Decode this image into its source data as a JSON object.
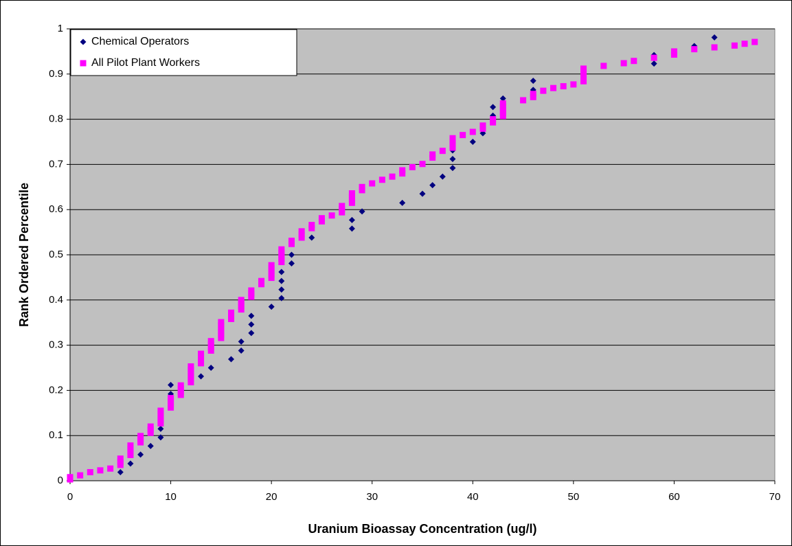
{
  "chart_data": {
    "type": "scatter",
    "xlabel": "Uranium Bioassay Concentration (ug/l)",
    "ylabel": "Rank Ordered Percentile",
    "xlim": [
      0,
      70
    ],
    "xticks": [
      0,
      10,
      20,
      30,
      40,
      50,
      60,
      70
    ],
    "ylim": [
      0,
      1
    ],
    "yticks": [
      0,
      0.1,
      0.2,
      0.3,
      0.4,
      0.5,
      0.6,
      0.7,
      0.8,
      0.9,
      1
    ],
    "grid": true,
    "legend": "top-left",
    "series": [
      {
        "name": "Chemical Operators",
        "color": "#000080",
        "marker": "diamond",
        "x": [
          5,
          6,
          7,
          8,
          9,
          9,
          10,
          10,
          13,
          14,
          16,
          17,
          17,
          18,
          18,
          18,
          20,
          21,
          21,
          21,
          21,
          22,
          22,
          24,
          28,
          28,
          29,
          33,
          35,
          36,
          37,
          38,
          38,
          38,
          40,
          41,
          42,
          42,
          43,
          46,
          46,
          58,
          58,
          62,
          64
        ],
        "values": [
          0.019,
          0.038,
          0.058,
          0.077,
          0.096,
          0.115,
          0.192,
          0.212,
          0.231,
          0.25,
          0.269,
          0.288,
          0.308,
          0.327,
          0.346,
          0.365,
          0.385,
          0.404,
          0.423,
          0.442,
          0.462,
          0.481,
          0.5,
          0.538,
          0.558,
          0.577,
          0.596,
          0.615,
          0.635,
          0.654,
          0.673,
          0.692,
          0.712,
          0.731,
          0.75,
          0.769,
          0.808,
          0.827,
          0.846,
          0.865,
          0.885,
          0.923,
          0.942,
          0.962,
          0.981
        ]
      },
      {
        "name": "All Pilot Plant Workers",
        "color": "#ff00ff",
        "marker": "square",
        "x": [
          0,
          0,
          1,
          2,
          3,
          4,
          5,
          5,
          5,
          6,
          6,
          6,
          6,
          7,
          7,
          7,
          8,
          8,
          8,
          9,
          9,
          9,
          9,
          9,
          10,
          10,
          10,
          10,
          11,
          11,
          11,
          11,
          12,
          12,
          12,
          12,
          12,
          12,
          13,
          13,
          13,
          13,
          14,
          14,
          14,
          14,
          15,
          15,
          15,
          15,
          15,
          15,
          16,
          16,
          16,
          17,
          17,
          17,
          17,
          18,
          18,
          18,
          19,
          19,
          20,
          20,
          20,
          20,
          20,
          21,
          21,
          21,
          21,
          21,
          22,
          22,
          23,
          23,
          23,
          24,
          24,
          25,
          25,
          26,
          27,
          27,
          27,
          28,
          28,
          28,
          28,
          29,
          29,
          30,
          31,
          32,
          33,
          33,
          34,
          35,
          36,
          36,
          37,
          38,
          38,
          38,
          38,
          39,
          40,
          41,
          41,
          42,
          42,
          43,
          43,
          43,
          43,
          43,
          45,
          46,
          46,
          47,
          48,
          49,
          50,
          51,
          51,
          51,
          51,
          51,
          53,
          55,
          56,
          58,
          60,
          60,
          62,
          64,
          66,
          67,
          68
        ],
        "values": [
          0.003,
          0.008,
          0.012,
          0.019,
          0.023,
          0.027,
          0.035,
          0.042,
          0.049,
          0.057,
          0.064,
          0.071,
          0.078,
          0.085,
          0.092,
          0.099,
          0.106,
          0.113,
          0.12,
          0.127,
          0.134,
          0.141,
          0.148,
          0.155,
          0.162,
          0.169,
          0.176,
          0.183,
          0.19,
          0.197,
          0.204,
          0.211,
          0.218,
          0.225,
          0.232,
          0.239,
          0.246,
          0.253,
          0.26,
          0.267,
          0.274,
          0.281,
          0.288,
          0.295,
          0.302,
          0.309,
          0.316,
          0.323,
          0.33,
          0.337,
          0.344,
          0.351,
          0.358,
          0.365,
          0.372,
          0.379,
          0.386,
          0.393,
          0.4,
          0.407,
          0.414,
          0.421,
          0.435,
          0.442,
          0.449,
          0.456,
          0.463,
          0.47,
          0.477,
          0.484,
          0.491,
          0.498,
          0.505,
          0.512,
          0.524,
          0.531,
          0.538,
          0.545,
          0.552,
          0.559,
          0.566,
          0.574,
          0.581,
          0.587,
          0.594,
          0.601,
          0.608,
          0.615,
          0.622,
          0.629,
          0.636,
          0.643,
          0.65,
          0.658,
          0.666,
          0.673,
          0.68,
          0.687,
          0.694,
          0.701,
          0.715,
          0.722,
          0.73,
          0.737,
          0.744,
          0.751,
          0.758,
          0.765,
          0.772,
          0.779,
          0.786,
          0.793,
          0.8,
          0.807,
          0.814,
          0.821,
          0.828,
          0.835,
          0.842,
          0.849,
          0.856,
          0.863,
          0.869,
          0.873,
          0.877,
          0.884,
          0.891,
          0.898,
          0.905,
          0.912,
          0.918,
          0.924,
          0.929,
          0.936,
          0.943,
          0.95,
          0.955,
          0.959,
          0.963,
          0.967,
          0.971
        ]
      }
    ]
  }
}
